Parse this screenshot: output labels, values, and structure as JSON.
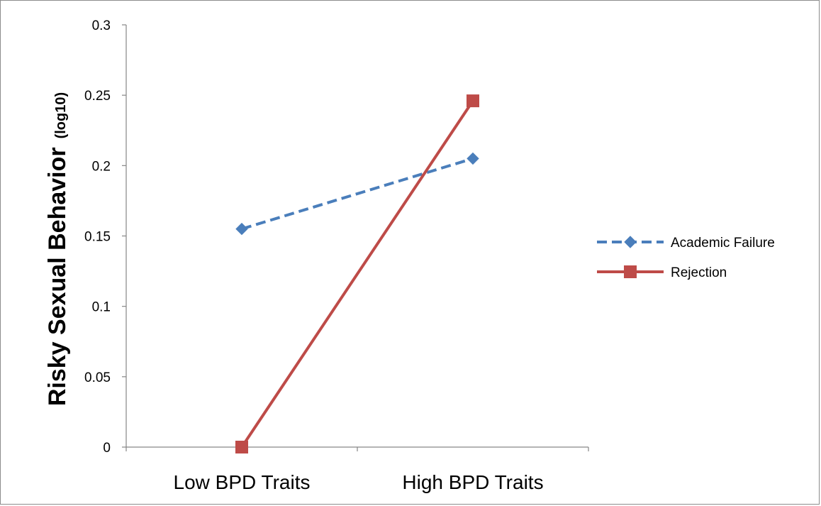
{
  "chart_data": {
    "type": "line",
    "categories": [
      "Low BPD Traits",
      "High BPD Traits"
    ],
    "series": [
      {
        "name": "Academic Failure",
        "values": [
          0.155,
          0.205
        ],
        "color": "#4a7ebb",
        "line_style": "dashed",
        "marker": "diamond"
      },
      {
        "name": "Rejection",
        "values": [
          0.0,
          0.246
        ],
        "color": "#be4b48",
        "line_style": "solid",
        "marker": "square"
      }
    ],
    "title": "",
    "xlabel": "",
    "ylabel": "Risky Sexual Behavior",
    "ylabel_suffix": "(log10)",
    "ylim": [
      0,
      0.3
    ],
    "yticks": [
      "0",
      "0.05",
      "0.1",
      "0.15",
      "0.2",
      "0.25",
      "0.3"
    ],
    "grid": false,
    "legend_position": "right"
  }
}
